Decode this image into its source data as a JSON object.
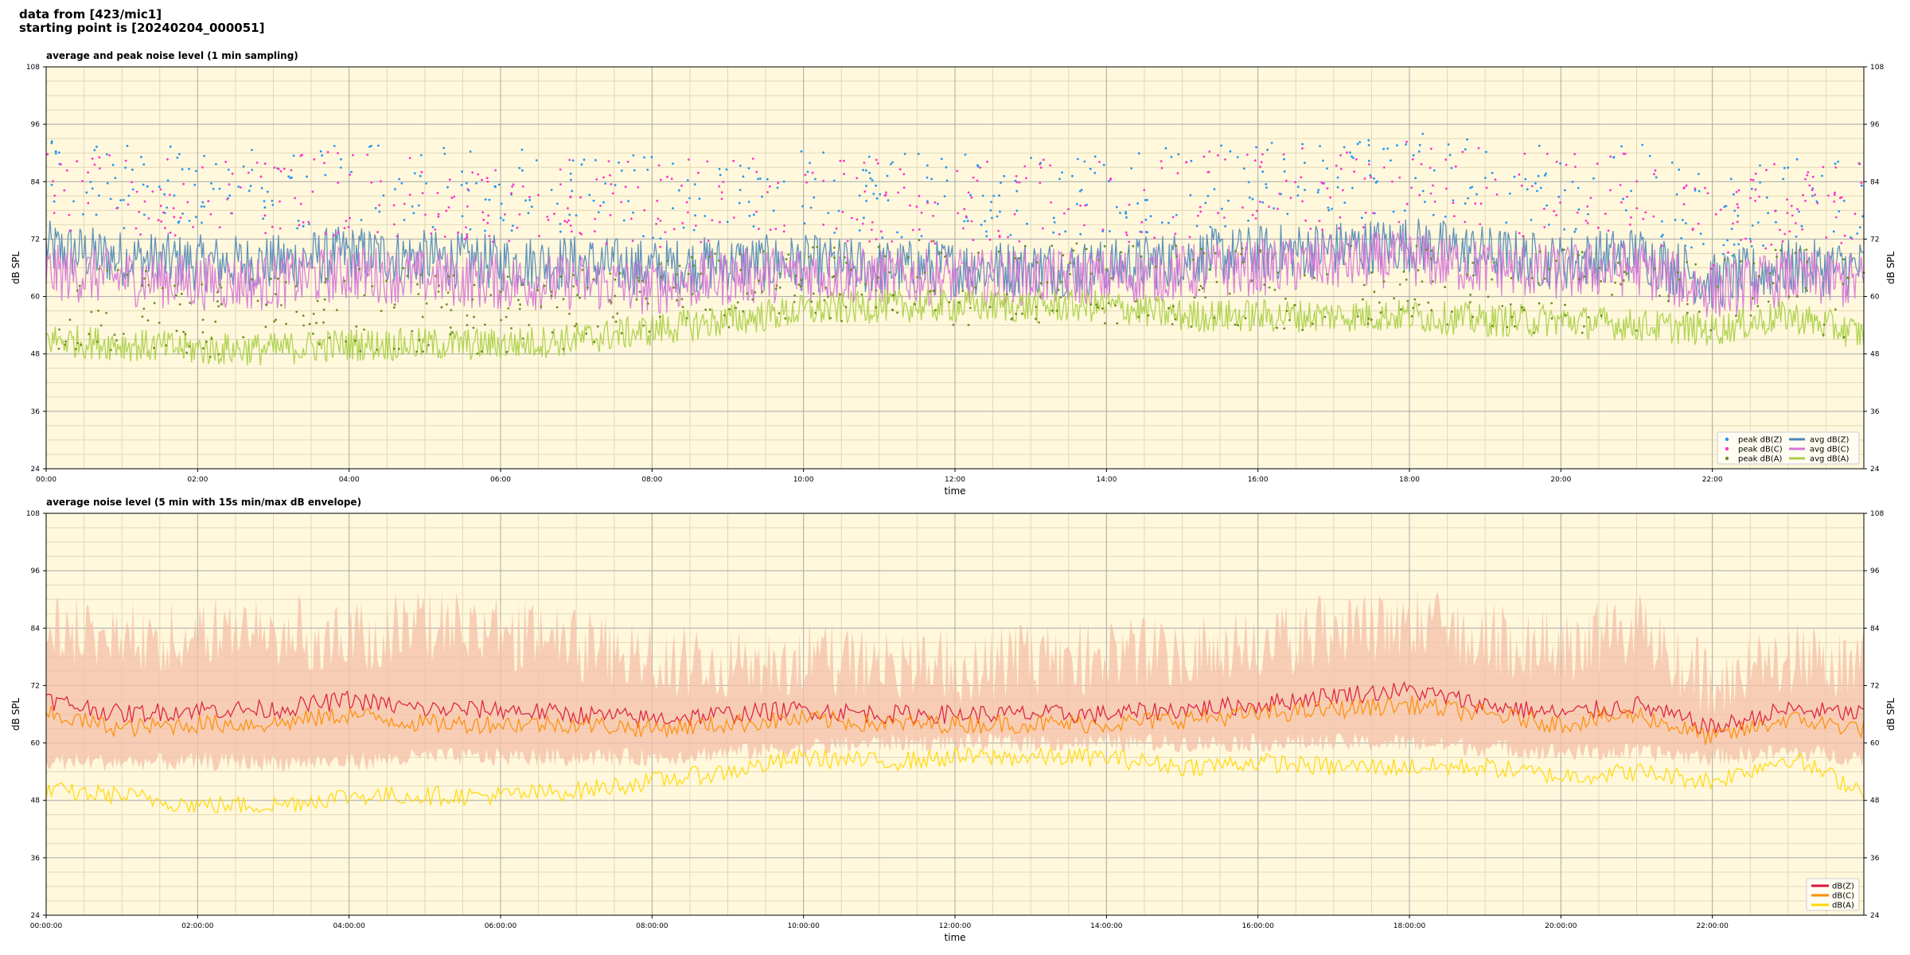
{
  "header": {
    "line1": "data from [423/mic1]",
    "line2": "starting point is [20240204_000051]"
  },
  "colors": {
    "background": "#fff8dc",
    "grid_major": "#a8a8a8",
    "grid_minor": "#e2d8b8",
    "avg_z": "#4f86b8",
    "avg_c": "#d675d8",
    "avg_a": "#a8cf45",
    "peak_z": "#2196f3",
    "peak_c": "#ff33cc",
    "peak_a": "#6b8e23",
    "env_z": "#dc143c",
    "env_c": "#ff8c00",
    "env_a": "#ffd700",
    "envelope_fill": "#f4c0a8"
  },
  "chart_data": [
    {
      "type": "line",
      "title": "average and peak noise level (1 min sampling)",
      "xlabel": "time",
      "ylabel": "dB SPL",
      "ylim": [
        24,
        108
      ],
      "xlim_hours": [
        0,
        24
      ],
      "grid": true,
      "legend_placement": "lower-right",
      "x_ticks": [
        "00:00",
        "02:00",
        "04:00",
        "06:00",
        "08:00",
        "10:00",
        "12:00",
        "14:00",
        "16:00",
        "18:00",
        "20:00",
        "22:00"
      ],
      "y_ticks": [
        24,
        36,
        48,
        60,
        72,
        84,
        96,
        108
      ],
      "hours": [
        0,
        1,
        2,
        3,
        4,
        5,
        6,
        7,
        8,
        9,
        10,
        11,
        12,
        13,
        14,
        15,
        16,
        17,
        18,
        19,
        20,
        21,
        22,
        23,
        24
      ],
      "series": [
        {
          "name": "avg dB(Z)",
          "kind": "line",
          "color_key": "avg_z",
          "values": [
            70,
            68,
            67,
            67,
            69,
            68,
            67,
            67,
            66,
            67,
            67,
            66,
            66,
            66,
            66,
            68,
            69,
            70,
            71,
            69,
            67,
            69,
            63,
            66,
            66
          ]
        },
        {
          "name": "avg dB(C)",
          "kind": "line",
          "color_key": "avg_c",
          "values": [
            65,
            64,
            63,
            63,
            65,
            64,
            63,
            63,
            62,
            64,
            65,
            64,
            64,
            64,
            64,
            65,
            66,
            67,
            68,
            66,
            65,
            66,
            61,
            64,
            63
          ]
        },
        {
          "name": "avg dB(A)",
          "kind": "line",
          "color_key": "avg_a",
          "values": [
            51,
            50,
            49,
            49,
            50,
            50,
            50,
            51,
            53,
            55,
            57,
            58,
            58,
            58,
            58,
            56,
            56,
            56,
            56,
            55,
            55,
            54,
            53,
            56,
            52
          ]
        },
        {
          "name": "peak dB(Z)",
          "kind": "scatter",
          "color_key": "peak_z",
          "values": [
            84,
            83,
            82,
            82,
            84,
            83,
            82,
            82,
            81,
            82,
            82,
            81,
            81,
            81,
            81,
            83,
            84,
            85,
            86,
            84,
            82,
            84,
            76,
            81,
            81
          ]
        },
        {
          "name": "peak dB(C)",
          "kind": "scatter",
          "color_key": "peak_c",
          "values": [
            82,
            81,
            80,
            80,
            82,
            81,
            80,
            80,
            79,
            81,
            81,
            80,
            80,
            80,
            80,
            81,
            82,
            83,
            84,
            82,
            81,
            82,
            74,
            80,
            79
          ]
        },
        {
          "name": "peak dB(A)",
          "kind": "scatter",
          "color_key": "peak_a",
          "values": [
            58,
            57,
            56,
            56,
            57,
            57,
            57,
            58,
            60,
            62,
            63,
            63,
            63,
            63,
            63,
            62,
            62,
            62,
            62,
            61,
            61,
            60,
            59,
            62,
            58
          ]
        }
      ]
    },
    {
      "type": "line",
      "title": "average noise level (5 min with 15s min/max dB envelope)",
      "xlabel": "time",
      "ylabel": "dB SPL",
      "ylim": [
        24,
        108
      ],
      "xlim_hours": [
        0,
        24
      ],
      "grid": true,
      "legend_placement": "lower-right",
      "x_ticks": [
        "00:00:00",
        "02:00:00",
        "04:00:00",
        "06:00:00",
        "08:00:00",
        "10:00:00",
        "12:00:00",
        "14:00:00",
        "16:00:00",
        "18:00:00",
        "20:00:00",
        "22:00:00"
      ],
      "y_ticks": [
        24,
        36,
        48,
        60,
        72,
        84,
        96,
        108
      ],
      "hours": [
        0,
        1,
        2,
        3,
        4,
        5,
        6,
        7,
        8,
        9,
        10,
        11,
        12,
        13,
        14,
        15,
        16,
        17,
        18,
        19,
        20,
        21,
        22,
        23,
        24
      ],
      "envelope": {
        "lower": [
          56,
          56,
          56,
          56,
          56,
          57,
          57,
          57,
          57,
          58,
          59,
          60,
          60,
          60,
          60,
          60,
          60,
          60,
          60,
          59,
          58,
          58,
          57,
          58,
          57
        ],
        "upper": [
          92,
          90,
          91,
          92,
          90,
          93,
          91,
          88,
          86,
          85,
          86,
          85,
          84,
          85,
          86,
          87,
          88,
          92,
          93,
          90,
          88,
          92,
          80,
          86,
          84
        ]
      },
      "series": [
        {
          "name": "dB(Z)",
          "kind": "line",
          "color_key": "env_z",
          "values": [
            69,
            66,
            67,
            67,
            69,
            67,
            67,
            66,
            65,
            66,
            67,
            66,
            66,
            66,
            66,
            67,
            68,
            70,
            71,
            68,
            66,
            68,
            63,
            67,
            66
          ]
        },
        {
          "name": "dB(C)",
          "kind": "line",
          "color_key": "env_c",
          "values": [
            66,
            63,
            64,
            64,
            66,
            64,
            64,
            64,
            63,
            64,
            65,
            64,
            64,
            64,
            64,
            65,
            66,
            67,
            68,
            66,
            64,
            66,
            61,
            65,
            63
          ]
        },
        {
          "name": "dB(A)",
          "kind": "line",
          "color_key": "env_a",
          "values": [
            50,
            49,
            47,
            47,
            49,
            49,
            49,
            50,
            52,
            54,
            57,
            56,
            57,
            57,
            57,
            55,
            56,
            55,
            55,
            55,
            53,
            54,
            52,
            57,
            50
          ]
        }
      ]
    }
  ]
}
